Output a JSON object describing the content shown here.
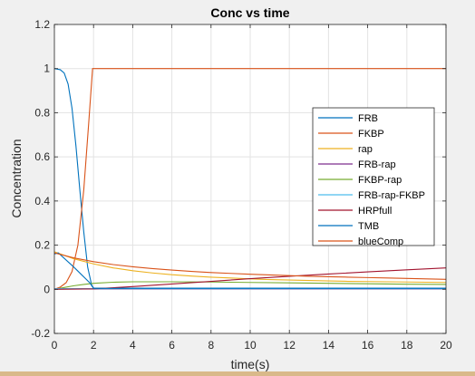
{
  "chart_data": {
    "type": "line",
    "title": "Conc vs time",
    "xlabel": "time(s)",
    "ylabel": "Concentration",
    "xlim": [
      0,
      20
    ],
    "ylim": [
      -0.2,
      1.2
    ],
    "xticks": [
      0,
      2,
      4,
      6,
      8,
      10,
      12,
      14,
      16,
      18,
      20
    ],
    "yticks": [
      -0.2,
      0,
      0.2,
      0.4,
      0.6,
      0.8,
      1,
      1.2
    ],
    "xtick_labels": [
      "0",
      "2",
      "4",
      "6",
      "8",
      "10",
      "12",
      "14",
      "16",
      "18",
      "20"
    ],
    "ytick_labels": [
      "-0.2",
      "0",
      "0.2",
      "0.4",
      "0.6",
      "0.8",
      "1",
      "1.2"
    ],
    "grid": true,
    "legend_position": "right",
    "series": [
      {
        "name": "FRB",
        "color": "#0072BD",
        "x": [
          0,
          0.3,
          0.5,
          0.7,
          0.9,
          1.1,
          1.3,
          1.5,
          1.7,
          1.9,
          2.0,
          20
        ],
        "y": [
          1.0,
          0.995,
          0.98,
          0.93,
          0.82,
          0.65,
          0.45,
          0.26,
          0.1,
          0.02,
          0.005,
          0.005
        ]
      },
      {
        "name": "FKBP",
        "color": "#D95319",
        "x": [
          0,
          0.3,
          0.6,
          0.9,
          1.2,
          1.5,
          1.75,
          1.95,
          20
        ],
        "y": [
          0.0,
          0.01,
          0.03,
          0.08,
          0.2,
          0.45,
          0.75,
          1.0,
          1.0
        ]
      },
      {
        "name": "rap",
        "color": "#EDB120",
        "x": [
          0,
          1,
          2,
          3,
          4,
          5,
          6,
          7,
          8,
          9,
          10,
          11,
          12,
          13,
          14,
          15,
          16,
          17,
          18,
          19,
          20
        ],
        "y": [
          0.17,
          0.138,
          0.115,
          0.097,
          0.084,
          0.074,
          0.066,
          0.06,
          0.055,
          0.051,
          0.047,
          0.044,
          0.042,
          0.04,
          0.038,
          0.036,
          0.035,
          0.034,
          0.033,
          0.032,
          0.031
        ]
      },
      {
        "name": "FRB-rap",
        "color": "#7E2F8E",
        "x": [
          0,
          20
        ],
        "y": [
          0.002,
          0.002
        ]
      },
      {
        "name": "FKBP-rap",
        "color": "#77AC30",
        "x": [
          0,
          0.5,
          1,
          1.5,
          2,
          3,
          4,
          5,
          6,
          8,
          10,
          12,
          14,
          16,
          18,
          20
        ],
        "y": [
          0.0,
          0.008,
          0.016,
          0.022,
          0.027,
          0.032,
          0.034,
          0.034,
          0.034,
          0.033,
          0.031,
          0.029,
          0.027,
          0.025,
          0.023,
          0.022
        ]
      },
      {
        "name": "FRB-rap-FKBP",
        "color": "#4DBEEE",
        "x": [
          0,
          20
        ],
        "y": [
          0.003,
          0.003
        ]
      },
      {
        "name": "HRPfull",
        "color": "#A2142F",
        "x": [
          0,
          2,
          4,
          6,
          8,
          10,
          12,
          14,
          16,
          18,
          20
        ],
        "y": [
          0.0,
          0.002,
          0.012,
          0.024,
          0.036,
          0.048,
          0.059,
          0.069,
          0.079,
          0.088,
          0.097
        ]
      },
      {
        "name": "TMB",
        "color": "#0072BD",
        "x": [
          0,
          0.2,
          1,
          1.8,
          2.0,
          20
        ],
        "y": [
          0.16,
          0.165,
          0.1,
          0.03,
          0.004,
          0.004
        ]
      },
      {
        "name": "blueComp",
        "color": "#D95319",
        "x": [
          0,
          1,
          2,
          3,
          4,
          5,
          6,
          7,
          8,
          9,
          10,
          11,
          12,
          13,
          14,
          15,
          16,
          17,
          18,
          19,
          20
        ],
        "y": [
          0.165,
          0.142,
          0.125,
          0.112,
          0.102,
          0.094,
          0.087,
          0.081,
          0.076,
          0.072,
          0.068,
          0.065,
          0.062,
          0.059,
          0.057,
          0.055,
          0.053,
          0.051,
          0.049,
          0.047,
          0.045
        ]
      }
    ]
  }
}
